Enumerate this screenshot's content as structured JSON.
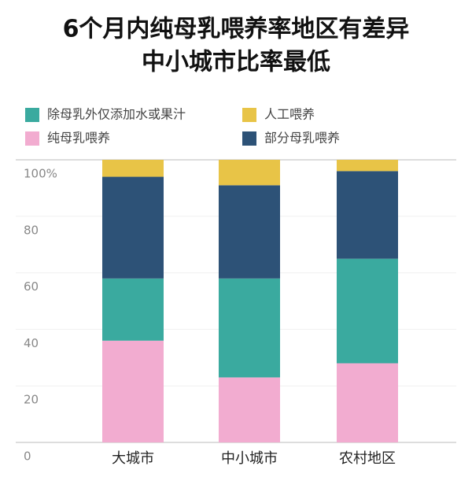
{
  "chart_data": {
    "type": "stacked-bar",
    "title": [
      "6个月内纯母乳喂养率地区有差异",
      "中小城市比率最低"
    ],
    "categories": [
      "大城市",
      "中小城市",
      "农村地区"
    ],
    "series": [
      {
        "name": "纯母乳喂养",
        "color": "#f2acd0",
        "values": [
          36,
          23,
          28
        ]
      },
      {
        "name": "除母乳外仅添加水或果汁",
        "color": "#3aaa9f",
        "values": [
          22,
          35,
          37
        ]
      },
      {
        "name": "部分母乳喂养",
        "color": "#2d5277",
        "values": [
          36,
          33,
          31
        ]
      },
      {
        "name": "人工喂养",
        "color": "#e8c447",
        "values": [
          6,
          9,
          4
        ]
      }
    ],
    "ylim": [
      0,
      100
    ],
    "yticks": [
      0,
      20,
      40,
      60,
      80,
      {
        "value": 100,
        "label": "100%"
      }
    ],
    "grid": true
  }
}
